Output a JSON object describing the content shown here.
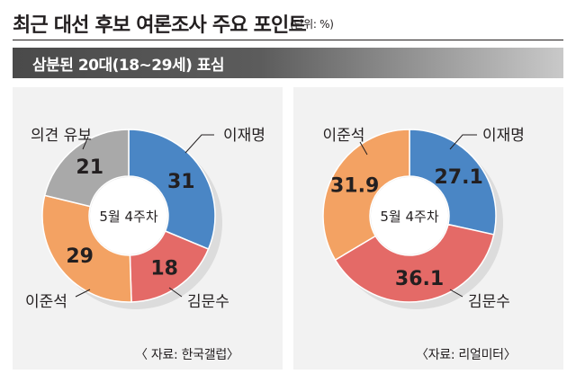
{
  "header": {
    "title": "최근 대선 후보 여론조사 주요 포인트",
    "unit": "(단위: %)"
  },
  "banner": {
    "text": "삼분된 20대(18~29세) 표심"
  },
  "chart_data": [
    {
      "type": "pie",
      "center_label": "5월 4주차",
      "source": "〈 자료: 한국갤럽〉",
      "slices": [
        {
          "name": "이재명",
          "value": 31,
          "color": "#4a86c5"
        },
        {
          "name": "김문수",
          "value": 18,
          "color": "#e46a67"
        },
        {
          "name": "이준석",
          "value": 29,
          "color": "#f3a263"
        },
        {
          "name": "의견 유보",
          "value": 21,
          "color": "#a9a9a9"
        }
      ]
    },
    {
      "type": "pie",
      "center_label": "5월 4주차",
      "source": "〈자료: 리얼미터〉",
      "slices": [
        {
          "name": "이재명",
          "value": 27.1,
          "color": "#4a86c5"
        },
        {
          "name": "김문수",
          "value": 36.1,
          "color": "#e46a67"
        },
        {
          "name": "이준석",
          "value": 31.9,
          "color": "#f3a263"
        }
      ]
    }
  ]
}
